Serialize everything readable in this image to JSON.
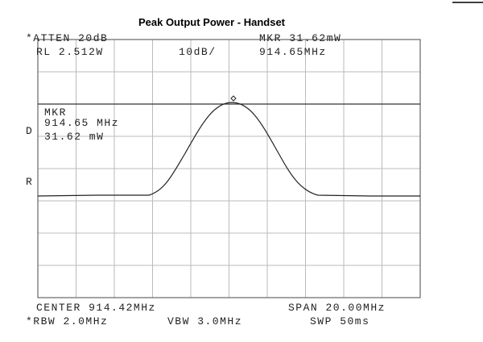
{
  "title": "Peak Output Power -  Handset",
  "header": {
    "atten": "*ATTEN 20dB",
    "ref_level": "RL 2.512W",
    "scale": "10dB/",
    "marker": "MKR 31.62mW",
    "marker_freq": "914.65MHz"
  },
  "marker_box": {
    "label": "MKR",
    "freq": "914.65 MHz",
    "power": "31.62 mW"
  },
  "side_labels": [
    "D",
    "R"
  ],
  "footer": {
    "center": "CENTER 914.42MHz",
    "span": "SPAN 20.00MHz",
    "rbw": "*RBW 2.0MHz",
    "vbw": "VBW 3.0MHz",
    "sweep": "SWP 50ms"
  }
}
